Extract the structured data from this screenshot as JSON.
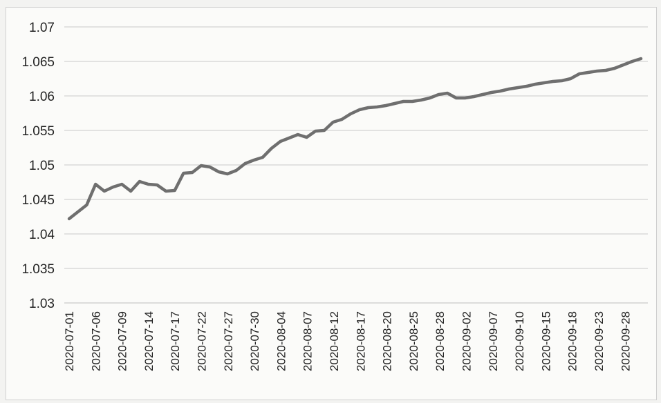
{
  "chart_data": {
    "type": "line",
    "title": "",
    "xlabel": "",
    "ylabel": "",
    "ylim": [
      1.03,
      1.07
    ],
    "yticks": [
      "1.07",
      "1.065",
      "1.06",
      "1.055",
      "1.05",
      "1.045",
      "1.04",
      "1.035",
      "1.03"
    ],
    "grid": true,
    "legend": "none",
    "line_color": "#6f6f6f",
    "x_tick_labels": [
      "2020-07-01",
      "2020-07-06",
      "2020-07-09",
      "2020-07-14",
      "2020-07-17",
      "2020-07-22",
      "2020-07-27",
      "2020-07-30",
      "2020-08-04",
      "2020-08-07",
      "2020-08-12",
      "2020-08-17",
      "2020-08-20",
      "2020-08-25",
      "2020-08-28",
      "2020-09-02",
      "2020-09-07",
      "2020-09-10",
      "2020-09-15",
      "2020-09-18",
      "2020-09-23",
      "2020-09-28"
    ],
    "series": [
      {
        "values": [
          1.0422,
          1.0432,
          1.0442,
          1.0472,
          1.0462,
          1.0468,
          1.0472,
          1.0462,
          1.0476,
          1.0472,
          1.0471,
          1.0462,
          1.0463,
          1.0488,
          1.0489,
          1.0499,
          1.0497,
          1.049,
          1.0487,
          1.0492,
          1.0502,
          1.0507,
          1.0511,
          1.0524,
          1.0534,
          1.0539,
          1.0544,
          1.054,
          1.0549,
          1.055,
          1.0562,
          1.0566,
          1.0574,
          1.058,
          1.0583,
          1.0584,
          1.0586,
          1.0589,
          1.0592,
          1.0592,
          1.0594,
          1.0597,
          1.0602,
          1.0604,
          1.0597,
          1.0597,
          1.0599,
          1.0602,
          1.0605,
          1.0607,
          1.061,
          1.0612,
          1.0614,
          1.0617,
          1.0619,
          1.0621,
          1.0622,
          1.0625,
          1.0632,
          1.0634,
          1.0636,
          1.0637,
          1.064,
          1.0645,
          1.065,
          1.0654
        ]
      }
    ]
  }
}
